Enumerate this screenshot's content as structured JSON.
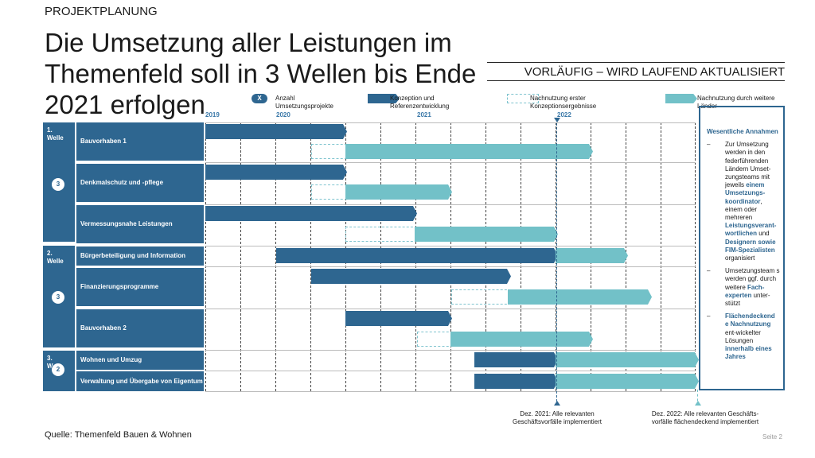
{
  "header": {
    "kicker": "PROJEKTPLANUNG",
    "title": "Die Umsetzung aller Leistungen im Themenfeld soll in 3 Wellen bis Ende 2021 erfolgen",
    "stamp": "VORLÄUFIG – WIRD LAUFEND AKTUALISIERT"
  },
  "legend": {
    "x_badge": "X",
    "count": "Anzahl Umsetzungsprojekte",
    "conception": "Konzeption und Referenzentwicklung",
    "reuse_first": "Nachnutzung erster Konzeptionsergebnisse",
    "reuse_other": "Nachnutzung durch weitere Länder"
  },
  "years": [
    "2019",
    "2020",
    "2021",
    "2022"
  ],
  "waves": [
    {
      "label": "1.\nWelle",
      "count": "3"
    },
    {
      "label": "2.\nWelle",
      "count": "3"
    },
    {
      "label": "3.\nW",
      "count": "2"
    }
  ],
  "rows": [
    "Bauvorhaben 1",
    "Denkmalschutz und -pflege",
    "Vermessungsnahe Leistungen",
    "Bürgerbeteiligung und Information",
    "Finanzierungsprogramme",
    "Bauvorhaben 2",
    "Wohnen und Umzug",
    "Verwaltung und Übergabe von Eigentum"
  ],
  "assumptions": {
    "heading": "Wesentliche Annahmen",
    "b1_a": "Zur Umsetzung werden in den federführenden Ländern Umset-zungsteams mit jeweils ",
    "b1_b": "einem Umsetzungs-koordinator",
    "b1_c": ", einem oder mehreren ",
    "b1_d": "Leistungsverant-wortlichen",
    "b1_e": " und ",
    "b1_f": "Designern sowie FIM-Spezialisten",
    "b1_g": " organisiert",
    "b2_a": "Umsetzungsteam s werden ggf. durch weitere ",
    "b2_b": "Fach-experten",
    "b2_c": " unter-stützt",
    "b3_a": "Flächendeckend e Nachnutzung",
    "b3_b": " ent-wickelter Lösungen ",
    "b3_c": "innerhalb eines Jahres"
  },
  "milestones": [
    "Dez. 2021: Alle relevanten Geschäftsvorfälle implementiert",
    "Dez. 2022: Alle relevanten Geschäfts-vorfälle flächendeckend implementiert"
  ],
  "footer": {
    "source": "Quelle: Themenfeld Bauen & Wohnen",
    "page": "Seite 2"
  },
  "colors": {
    "dark": "#2e6690",
    "light": "#72c1c8",
    "dashed": "#7fc4cf"
  }
}
